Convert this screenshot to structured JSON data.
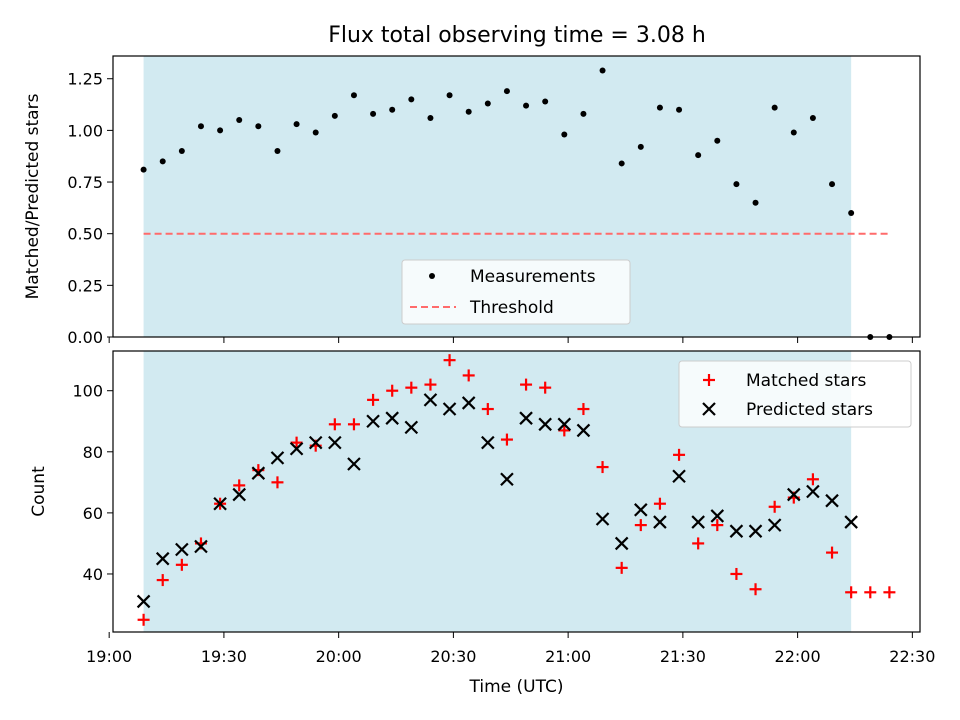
{
  "title": "Flux total observing time = 3.08 h",
  "colors": {
    "shade": "#add8e6",
    "measurement": "#000000",
    "threshold": "#ff6b6b",
    "matched": "#ff0000",
    "predicted": "#000000"
  },
  "chart_data": [
    {
      "type": "scatter",
      "ylabel": "Matched/Predicted stars",
      "xlabel": "",
      "ylim": [
        0,
        1.36
      ],
      "yticks": [
        0.0,
        0.25,
        0.5,
        0.75,
        1.0,
        1.25
      ],
      "ytick_labels": [
        "0.00",
        "0.25",
        "0.50",
        "0.75",
        "1.00",
        "1.25"
      ],
      "shaded_span": [
        "19:09",
        "22:14"
      ],
      "threshold": {
        "name": "Threshold",
        "value": 0.5,
        "x_range": [
          "19:09",
          "22:24"
        ]
      },
      "legend_position": "bottom-center",
      "series": [
        {
          "name": "Measurements",
          "x": [
            "19:09",
            "19:14",
            "19:19",
            "19:24",
            "19:29",
            "19:34",
            "19:39",
            "19:44",
            "19:49",
            "19:54",
            "19:59",
            "20:04",
            "20:09",
            "20:14",
            "20:19",
            "20:24",
            "20:29",
            "20:34",
            "20:39",
            "20:44",
            "20:49",
            "20:54",
            "20:59",
            "21:04",
            "21:09",
            "21:14",
            "21:19",
            "21:24",
            "21:29",
            "21:34",
            "21:39",
            "21:44",
            "21:49",
            "21:54",
            "21:59",
            "22:04",
            "22:09",
            "22:14",
            "22:19",
            "22:24"
          ],
          "values": [
            0.81,
            0.85,
            0.9,
            1.02,
            1.0,
            1.05,
            1.02,
            0.9,
            1.03,
            0.99,
            1.07,
            1.17,
            1.08,
            1.1,
            1.15,
            1.06,
            1.17,
            1.09,
            1.13,
            1.19,
            1.12,
            1.14,
            0.98,
            1.08,
            1.29,
            0.84,
            0.92,
            1.11,
            1.1,
            0.88,
            0.95,
            0.74,
            0.65,
            1.11,
            0.99,
            1.06,
            0.74,
            0.6,
            0.0,
            0.0
          ]
        }
      ]
    },
    {
      "type": "scatter",
      "ylabel": "Count",
      "xlabel": "Time (UTC)",
      "xlim": [
        "19:01",
        "22:32"
      ],
      "xticks": [
        "19:00",
        "19:30",
        "20:00",
        "20:30",
        "21:00",
        "21:30",
        "22:00",
        "22:30"
      ],
      "ylim": [
        21,
        113
      ],
      "yticks": [
        40,
        60,
        80,
        100
      ],
      "shaded_span": [
        "19:09",
        "22:14"
      ],
      "legend_position": "top-right",
      "series": [
        {
          "name": "Matched stars",
          "x": [
            "19:09",
            "19:14",
            "19:19",
            "19:24",
            "19:29",
            "19:34",
            "19:39",
            "19:44",
            "19:49",
            "19:54",
            "19:59",
            "20:04",
            "20:09",
            "20:14",
            "20:19",
            "20:24",
            "20:29",
            "20:34",
            "20:39",
            "20:44",
            "20:49",
            "20:54",
            "20:59",
            "21:04",
            "21:09",
            "21:14",
            "21:19",
            "21:24",
            "21:29",
            "21:34",
            "21:39",
            "21:44",
            "21:49",
            "21:54",
            "21:59",
            "22:04",
            "22:09",
            "22:14",
            "22:19",
            "22:24"
          ],
          "values": [
            25,
            38,
            43,
            50,
            63,
            69,
            74,
            70,
            83,
            82,
            89,
            89,
            97,
            100,
            101,
            102,
            110,
            105,
            94,
            84,
            102,
            101,
            87,
            94,
            75,
            42,
            56,
            63,
            79,
            50,
            56,
            40,
            35,
            62,
            65,
            71,
            47,
            34,
            34,
            34
          ]
        },
        {
          "name": "Predicted stars",
          "x": [
            "19:09",
            "19:14",
            "19:19",
            "19:24",
            "19:29",
            "19:34",
            "19:39",
            "19:44",
            "19:49",
            "19:54",
            "19:59",
            "20:04",
            "20:09",
            "20:14",
            "20:19",
            "20:24",
            "20:29",
            "20:34",
            "20:39",
            "20:44",
            "20:49",
            "20:54",
            "20:59",
            "21:04",
            "21:09",
            "21:14",
            "21:19",
            "21:24",
            "21:29",
            "21:34",
            "21:39",
            "21:44",
            "21:49",
            "21:54",
            "21:59",
            "22:04",
            "22:09",
            "22:14"
          ],
          "values": [
            31,
            45,
            48,
            49,
            63,
            66,
            73,
            78,
            81,
            83,
            83,
            76,
            90,
            91,
            88,
            97,
            94,
            96,
            83,
            71,
            91,
            89,
            89,
            87,
            58,
            50,
            61,
            57,
            72,
            57,
            59,
            54,
            54,
            56,
            66,
            67,
            64,
            57
          ]
        }
      ]
    }
  ]
}
